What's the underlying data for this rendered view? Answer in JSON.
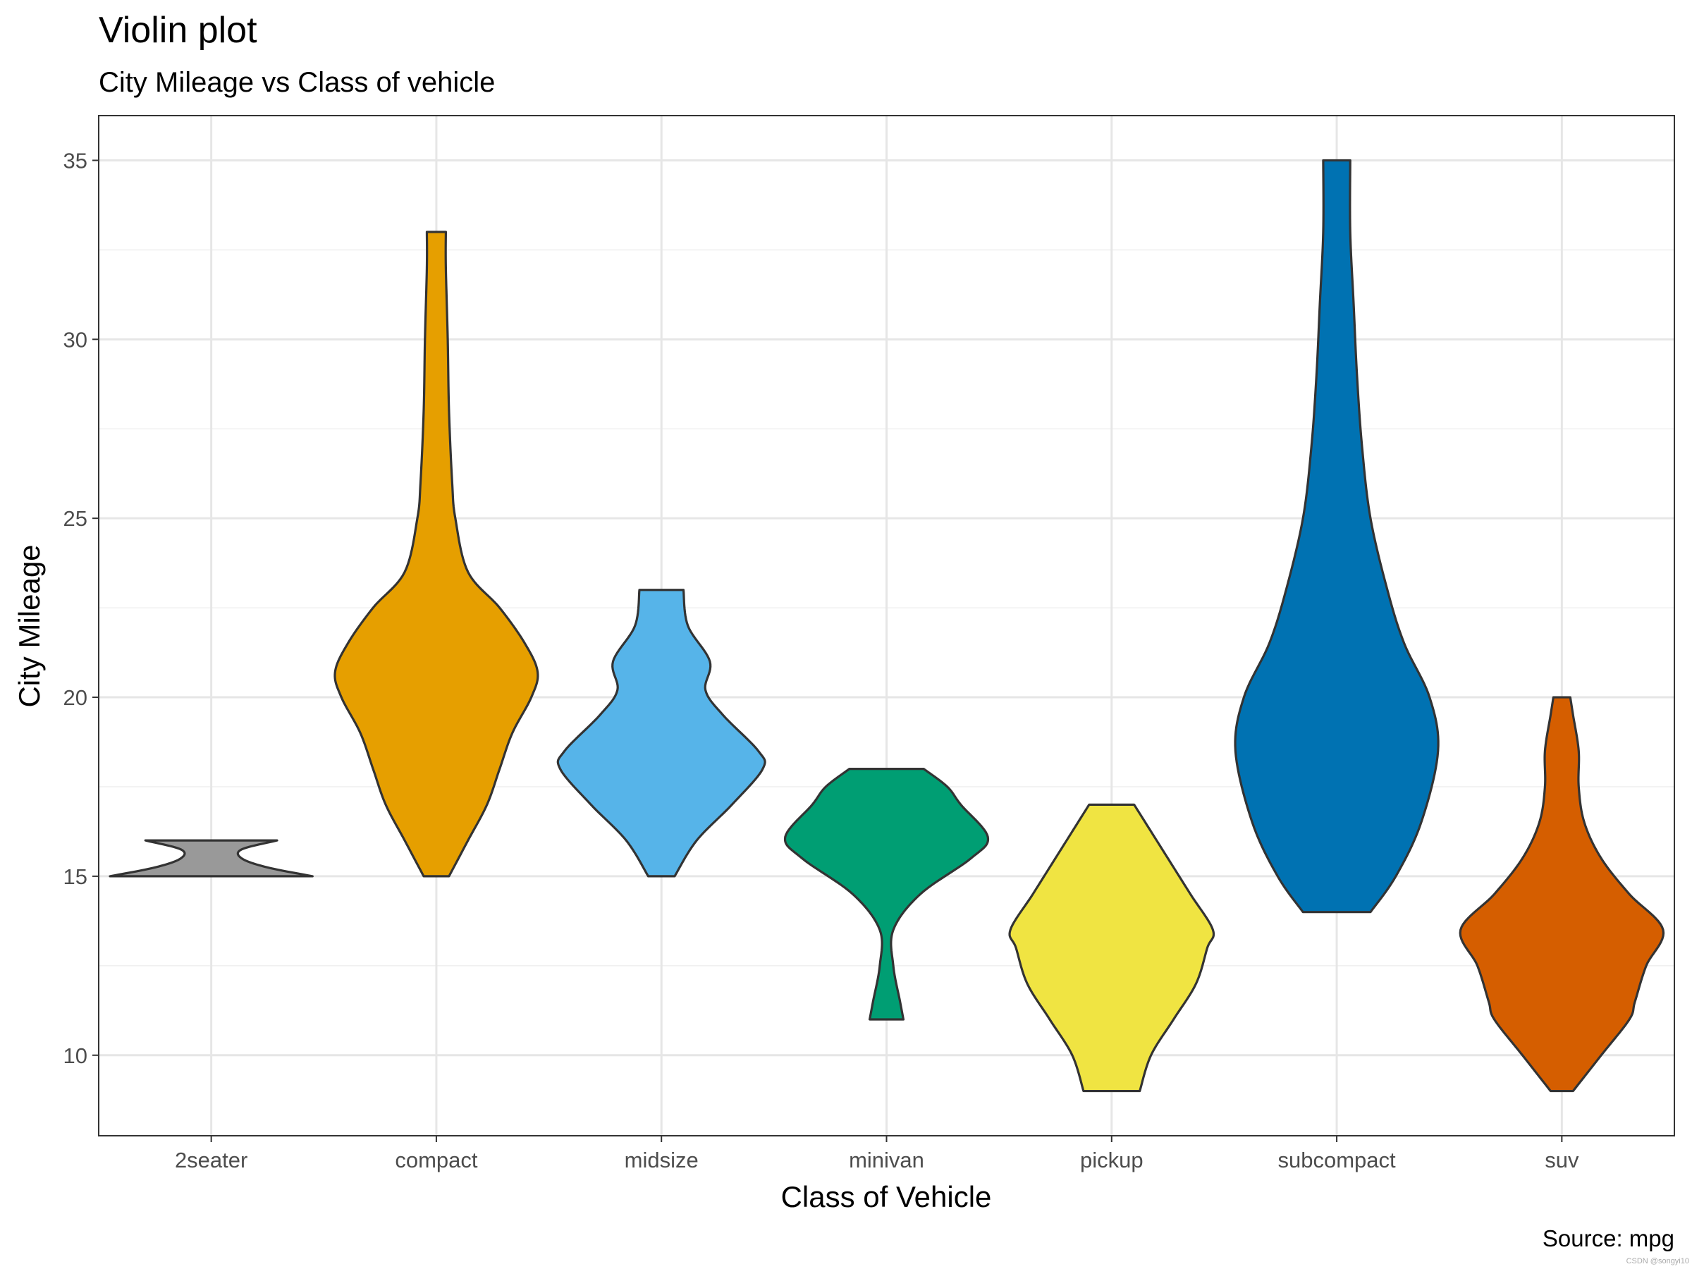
{
  "chart_data": {
    "type": "violin",
    "title": "Violin plot",
    "subtitle": "City Mileage vs Class of vehicle",
    "xlabel": "Class of Vehicle",
    "ylabel": "City Mileage",
    "caption": "Source: mpg",
    "watermark": "CSDN @songyi10",
    "ylim": [
      7.75,
      36.25
    ],
    "yticks": [
      10,
      15,
      20,
      25,
      30,
      35
    ],
    "ytick_labels": [
      "10",
      "15",
      "20",
      "25",
      "30",
      "35"
    ],
    "grid": true,
    "categories": [
      "2seater",
      "compact",
      "midsize",
      "minivan",
      "pickup",
      "subcompact",
      "suv"
    ],
    "series": [
      {
        "name": "2seater",
        "color": "#999999",
        "min": 15,
        "max": 16,
        "profile": [
          [
            15,
            1.0
          ],
          [
            15.25,
            0.55
          ],
          [
            15.5,
            0.3
          ],
          [
            15.75,
            0.3
          ],
          [
            16,
            0.65
          ]
        ]
      },
      {
        "name": "compact",
        "color": "#E69F00",
        "min": 15,
        "max": 33,
        "profile": [
          [
            15,
            0.02
          ],
          [
            16,
            0.05
          ],
          [
            17,
            0.08
          ],
          [
            18,
            0.1
          ],
          [
            19,
            0.12
          ],
          [
            20,
            0.15
          ],
          [
            20.7,
            0.16
          ],
          [
            21.5,
            0.14
          ],
          [
            22.5,
            0.1
          ],
          [
            23.5,
            0.05
          ],
          [
            25,
            0.03
          ],
          [
            26,
            0.025
          ],
          [
            28,
            0.02
          ],
          [
            30,
            0.018
          ],
          [
            32,
            0.015
          ],
          [
            33,
            0.015
          ]
        ]
      },
      {
        "name": "midsize",
        "color": "#56B4E9",
        "min": 15,
        "max": 23,
        "profile": [
          [
            15,
            0.03
          ],
          [
            16,
            0.08
          ],
          [
            17,
            0.16
          ],
          [
            18,
            0.23
          ],
          [
            18.5,
            0.22
          ],
          [
            19.5,
            0.14
          ],
          [
            20.2,
            0.1
          ],
          [
            21,
            0.11
          ],
          [
            22,
            0.06
          ],
          [
            23,
            0.05
          ]
        ]
      },
      {
        "name": "minivan",
        "color": "#009E73",
        "min": 11,
        "max": 18,
        "profile": [
          [
            11,
            0.05
          ],
          [
            11.5,
            0.04
          ],
          [
            12.5,
            0.02
          ],
          [
            13.5,
            0.02
          ],
          [
            14.5,
            0.1
          ],
          [
            15.5,
            0.25
          ],
          [
            16.1,
            0.3
          ],
          [
            17,
            0.22
          ],
          [
            17.5,
            0.18
          ],
          [
            18,
            0.11
          ]
        ]
      },
      {
        "name": "pickup",
        "color": "#F0E442",
        "min": 9,
        "max": 17,
        "profile": [
          [
            9,
            0.05
          ],
          [
            10,
            0.07
          ],
          [
            11,
            0.11
          ],
          [
            12,
            0.15
          ],
          [
            13,
            0.17
          ],
          [
            13.5,
            0.18
          ],
          [
            14.5,
            0.14
          ],
          [
            15.5,
            0.1
          ],
          [
            16.5,
            0.06
          ],
          [
            17,
            0.04
          ]
        ]
      },
      {
        "name": "subcompact",
        "color": "#0072B2",
        "min": 14,
        "max": 35,
        "profile": [
          [
            14,
            0.02
          ],
          [
            15,
            0.035
          ],
          [
            16.5,
            0.05
          ],
          [
            18.5,
            0.06
          ],
          [
            20,
            0.055
          ],
          [
            21.5,
            0.04
          ],
          [
            23,
            0.03
          ],
          [
            25,
            0.02
          ],
          [
            27,
            0.015
          ],
          [
            29,
            0.012
          ],
          [
            31,
            0.01
          ],
          [
            33,
            0.008
          ],
          [
            35,
            0.008
          ]
        ]
      },
      {
        "name": "suv",
        "color": "#D55E00",
        "min": 9,
        "max": 20,
        "profile": [
          [
            9,
            0.02
          ],
          [
            10,
            0.07
          ],
          [
            11,
            0.12
          ],
          [
            11.5,
            0.13
          ],
          [
            12.5,
            0.15
          ],
          [
            13.5,
            0.18
          ],
          [
            14.5,
            0.12
          ],
          [
            15.5,
            0.07
          ],
          [
            16.5,
            0.04
          ],
          [
            17.5,
            0.03
          ],
          [
            18.5,
            0.03
          ],
          [
            19.5,
            0.02
          ],
          [
            20,
            0.015
          ]
        ]
      }
    ]
  }
}
